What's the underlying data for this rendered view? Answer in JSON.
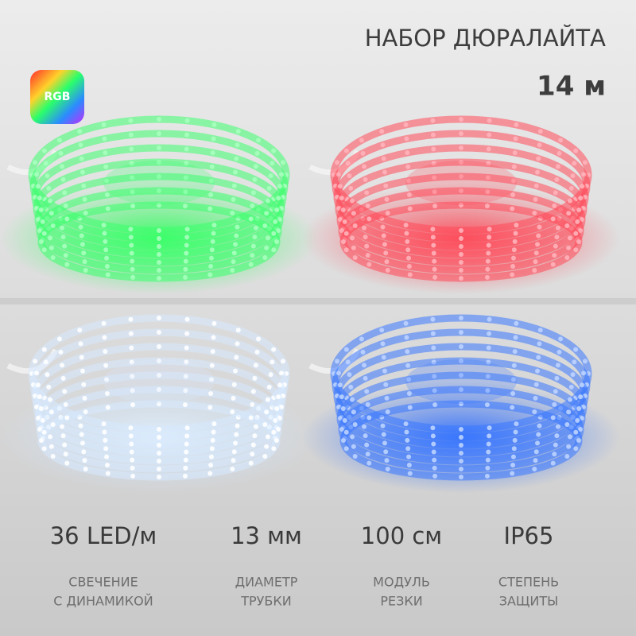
{
  "header": {
    "title": "НАБОР ДЮРАЛАЙТА",
    "length": "14 м",
    "badge": "RGB"
  },
  "specs": [
    {
      "value": "36 LED/м",
      "label": [
        "СВЕЧЕНИЕ",
        "С ДИНАМИКОЙ"
      ]
    },
    {
      "value": "13 мм",
      "label": [
        "ДИАМЕТР",
        "ТРУБКИ"
      ]
    },
    {
      "value": "100 см",
      "label": [
        "МОДУЛЬ",
        "РЕЗКИ"
      ]
    },
    {
      "value": "IP65",
      "label": [
        "СТЕПЕНЬ",
        "ЗАЩИТЫ"
      ]
    }
  ]
}
